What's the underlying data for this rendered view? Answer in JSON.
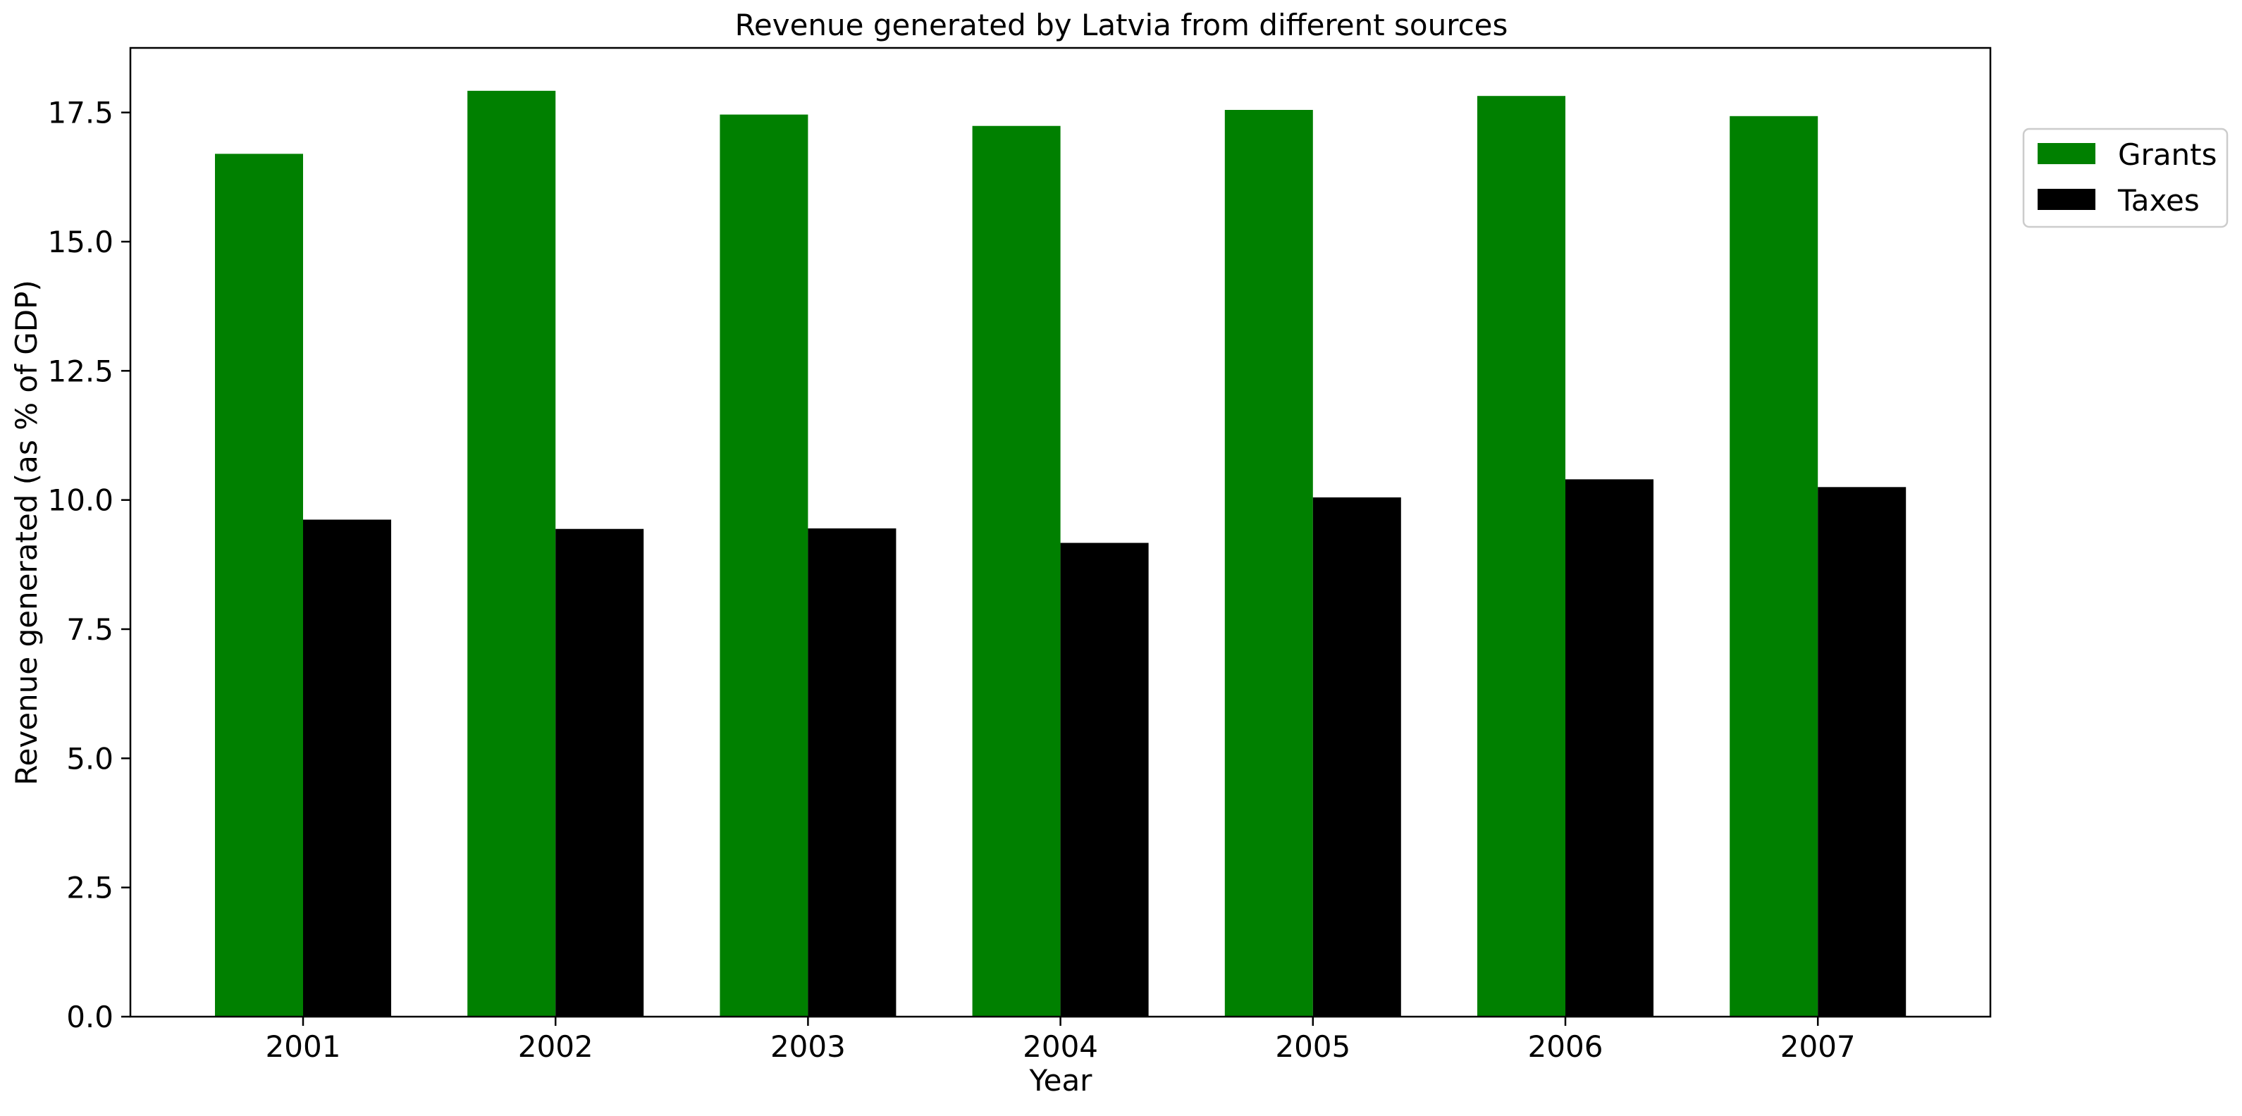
{
  "chart_data": {
    "type": "bar",
    "title": "Revenue generated by Latvia from different sources",
    "xlabel": "Year",
    "ylabel": "Revenue generated (as % of GDP)",
    "categories": [
      "2001",
      "2002",
      "2003",
      "2004",
      "2005",
      "2006",
      "2007"
    ],
    "series": [
      {
        "name": "Grants",
        "color": "#008000",
        "values": [
          16.7,
          17.92,
          17.46,
          17.24,
          17.55,
          17.82,
          17.43
        ]
      },
      {
        "name": "Taxes",
        "color": "#000000",
        "values": [
          9.62,
          9.44,
          9.45,
          9.17,
          10.05,
          10.4,
          10.25
        ]
      }
    ],
    "ylim": [
      0,
      18.75
    ],
    "yticks": [
      0.0,
      2.5,
      5.0,
      7.5,
      10.0,
      12.5,
      15.0,
      17.5
    ],
    "ytick_labels": [
      "0.0",
      "2.5",
      "5.0",
      "7.5",
      "10.0",
      "12.5",
      "15.0",
      "17.5"
    ],
    "grid": false,
    "legend_position": "outside-top-right"
  }
}
